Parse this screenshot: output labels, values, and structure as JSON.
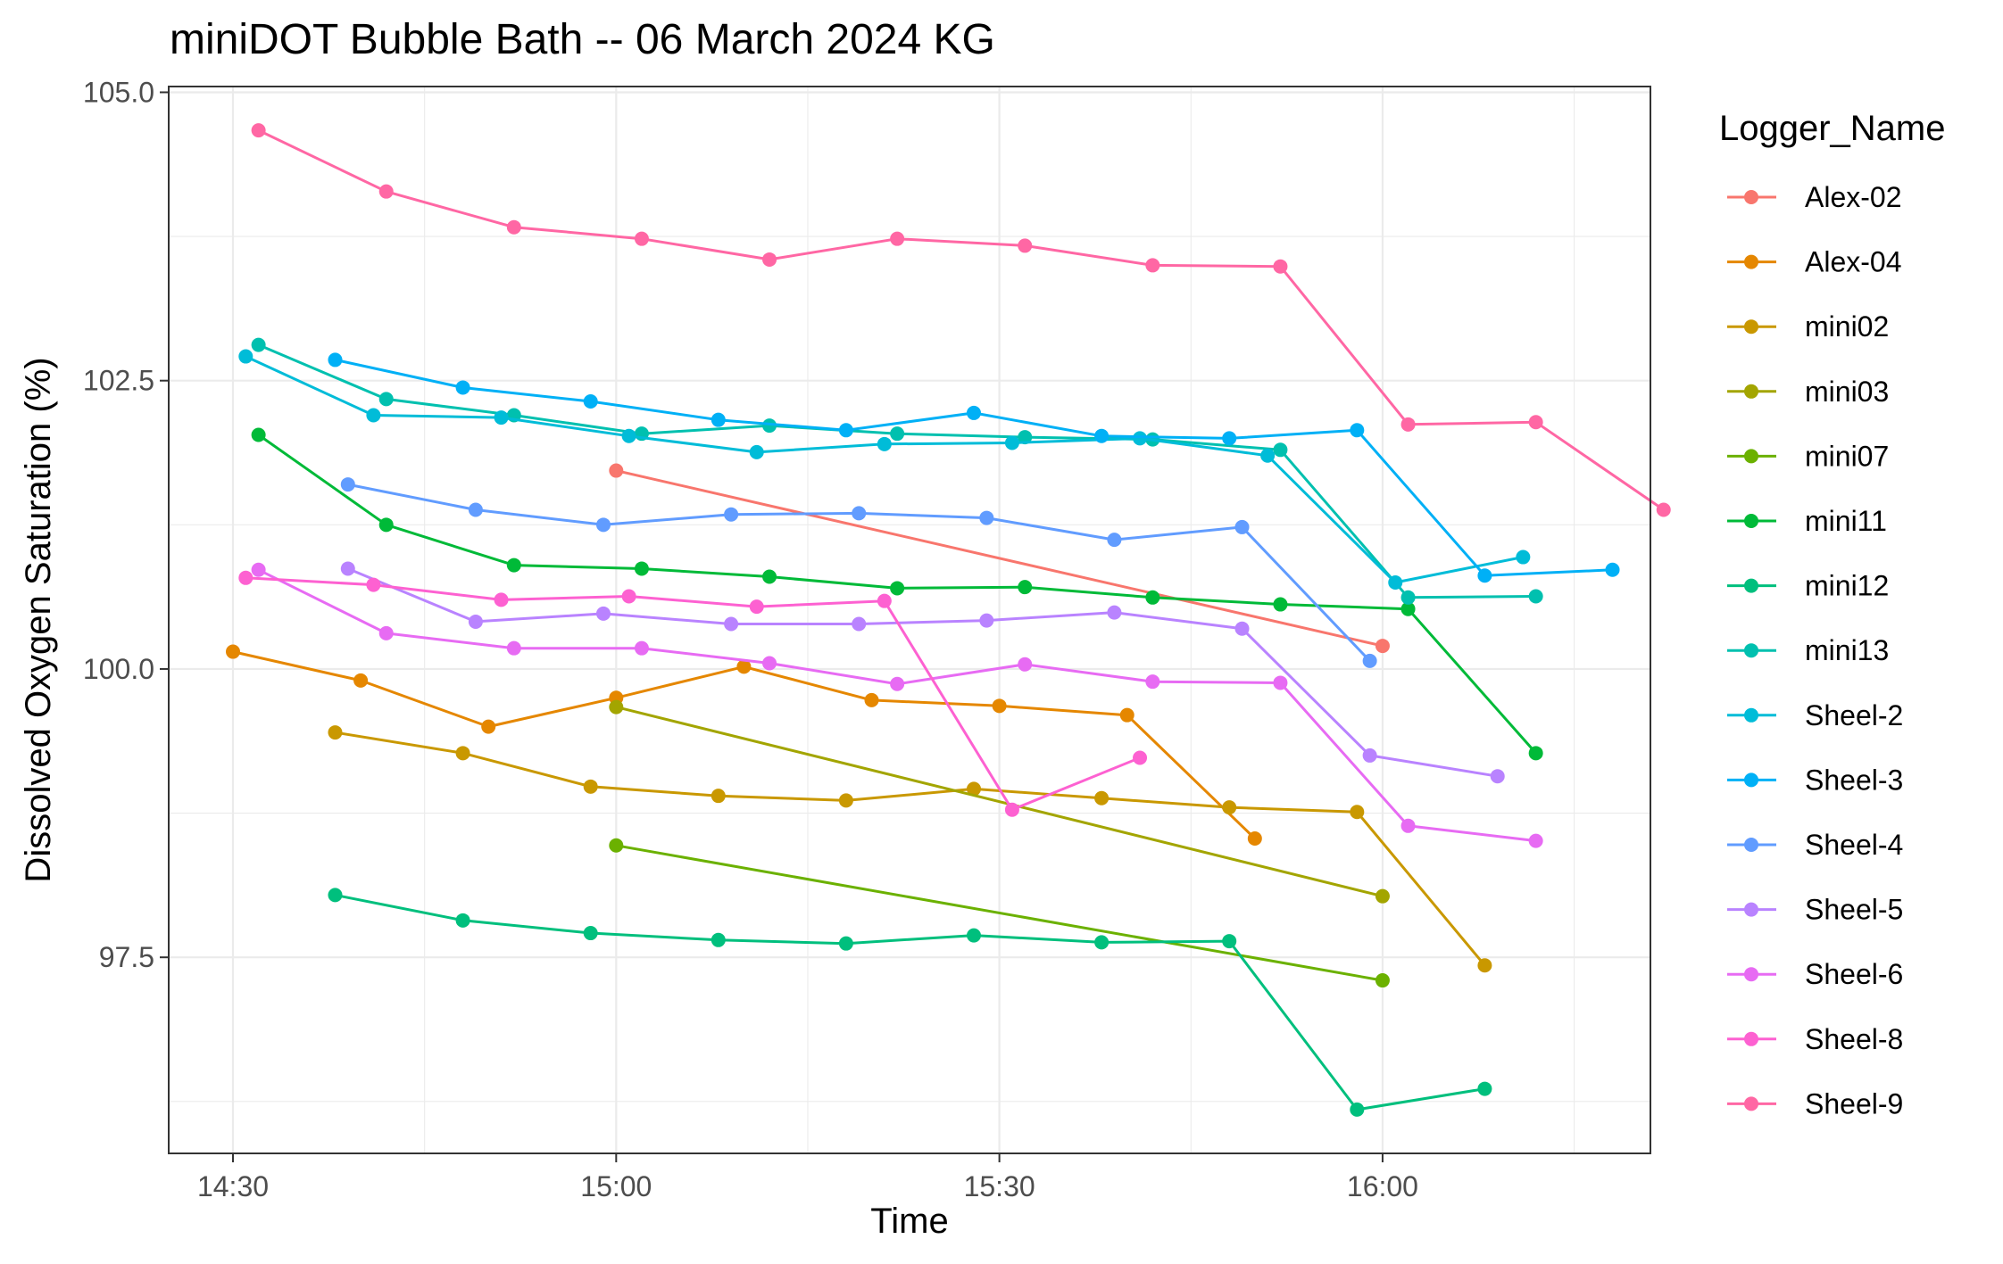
{
  "chart_data": {
    "type": "line",
    "title": "miniDOT Bubble Bath -- 06 March 2024 KG",
    "xlabel": "Time",
    "ylabel": "Dissolved Oxygen Saturation (%)",
    "x_ticks": [
      "14:30",
      "15:00",
      "15:30",
      "16:00"
    ],
    "y_ticks": [
      "97.5",
      "100.0",
      "102.5",
      "105.0"
    ],
    "xlim": [
      "14:30",
      "16:26"
    ],
    "ylim": [
      95.8,
      105.05
    ],
    "grid": true,
    "legend": {
      "title": "Logger_Name",
      "position": "right"
    },
    "series": [
      {
        "name": "Alex-02",
        "color": "#F8766D",
        "points": [
          [
            "15:00",
            101.72
          ],
          [
            "16:00",
            100.2
          ]
        ]
      },
      {
        "name": "Alex-04",
        "color": "#E58700",
        "points": [
          [
            "14:30",
            100.15
          ],
          [
            "14:40",
            99.9
          ],
          [
            "14:50",
            99.5
          ],
          [
            "15:00",
            99.75
          ],
          [
            "15:10",
            100.02
          ],
          [
            "15:20",
            99.73
          ],
          [
            "15:30",
            99.68
          ],
          [
            "15:40",
            99.6
          ],
          [
            "15:50",
            98.53
          ]
        ]
      },
      {
        "name": "mini02",
        "color": "#C99800",
        "points": [
          [
            "14:38",
            99.45
          ],
          [
            "14:48",
            99.27
          ],
          [
            "14:58",
            98.98
          ],
          [
            "15:08",
            98.9
          ],
          [
            "15:18",
            98.86
          ],
          [
            "15:28",
            98.96
          ],
          [
            "15:38",
            98.88
          ],
          [
            "15:48",
            98.8
          ],
          [
            "15:58",
            98.76
          ],
          [
            "16:08",
            97.43
          ]
        ]
      },
      {
        "name": "mini03",
        "color": "#A3A500",
        "points": [
          [
            "15:00",
            99.67
          ],
          [
            "16:00",
            98.03
          ]
        ]
      },
      {
        "name": "mini07",
        "color": "#6BB100",
        "points": [
          [
            "15:00",
            98.47
          ],
          [
            "16:00",
            97.3
          ]
        ]
      },
      {
        "name": "mini11",
        "color": "#00BA38",
        "points": [
          [
            "14:32",
            102.03
          ],
          [
            "14:42",
            101.25
          ],
          [
            "14:52",
            100.9
          ],
          [
            "15:02",
            100.87
          ],
          [
            "15:12",
            100.8
          ],
          [
            "15:22",
            100.7
          ],
          [
            "15:32",
            100.71
          ],
          [
            "15:42",
            100.62
          ],
          [
            "15:52",
            100.56
          ],
          [
            "16:02",
            100.52
          ],
          [
            "16:12",
            99.27
          ]
        ]
      },
      {
        "name": "mini12",
        "color": "#00BF7D",
        "points": [
          [
            "14:38",
            98.04
          ],
          [
            "14:48",
            97.82
          ],
          [
            "14:58",
            97.71
          ],
          [
            "15:08",
            97.65
          ],
          [
            "15:18",
            97.62
          ],
          [
            "15:28",
            97.69
          ],
          [
            "15:38",
            97.63
          ],
          [
            "15:48",
            97.64
          ],
          [
            "15:58",
            96.18
          ],
          [
            "16:08",
            96.36
          ]
        ]
      },
      {
        "name": "mini13",
        "color": "#00C0AF",
        "points": [
          [
            "14:32",
            102.81
          ],
          [
            "14:42",
            102.34
          ],
          [
            "14:52",
            102.2
          ],
          [
            "15:02",
            102.04
          ],
          [
            "15:12",
            102.11
          ],
          [
            "15:22",
            102.04
          ],
          [
            "15:32",
            102.01
          ],
          [
            "15:42",
            101.99
          ],
          [
            "15:52",
            101.9
          ],
          [
            "16:02",
            100.62
          ],
          [
            "16:12",
            100.63
          ]
        ]
      },
      {
        "name": "Sheel-2",
        "color": "#00BCD8",
        "points": [
          [
            "14:31",
            102.71
          ],
          [
            "14:41",
            102.2
          ],
          [
            "14:51",
            102.18
          ],
          [
            "15:01",
            102.02
          ],
          [
            "15:11",
            101.88
          ],
          [
            "15:21",
            101.95
          ],
          [
            "15:31",
            101.96
          ],
          [
            "15:41",
            102.0
          ],
          [
            "15:51",
            101.85
          ],
          [
            "16:01",
            100.75
          ],
          [
            "16:11",
            100.97
          ]
        ]
      },
      {
        "name": "Sheel-3",
        "color": "#00B0F6",
        "points": [
          [
            "14:38",
            102.68
          ],
          [
            "14:48",
            102.44
          ],
          [
            "14:58",
            102.32
          ],
          [
            "15:08",
            102.16
          ],
          [
            "15:18",
            102.07
          ],
          [
            "15:28",
            102.22
          ],
          [
            "15:38",
            102.02
          ],
          [
            "15:48",
            102.0
          ],
          [
            "15:58",
            102.07
          ],
          [
            "16:08",
            100.81
          ],
          [
            "16:18",
            100.86
          ]
        ]
      },
      {
        "name": "Sheel-4",
        "color": "#619CFF",
        "points": [
          [
            "14:39",
            101.6
          ],
          [
            "14:49",
            101.38
          ],
          [
            "14:59",
            101.25
          ],
          [
            "15:09",
            101.34
          ],
          [
            "15:19",
            101.35
          ],
          [
            "15:29",
            101.31
          ],
          [
            "15:39",
            101.12
          ],
          [
            "15:49",
            101.23
          ],
          [
            "15:59",
            100.07
          ]
        ]
      },
      {
        "name": "Sheel-5",
        "color": "#B983FF",
        "points": [
          [
            "14:39",
            100.87
          ],
          [
            "14:49",
            100.41
          ],
          [
            "14:59",
            100.48
          ],
          [
            "15:09",
            100.39
          ],
          [
            "15:19",
            100.39
          ],
          [
            "15:29",
            100.42
          ],
          [
            "15:39",
            100.49
          ],
          [
            "15:49",
            100.35
          ],
          [
            "15:59",
            99.25
          ],
          [
            "16:09",
            99.07
          ]
        ]
      },
      {
        "name": "Sheel-6",
        "color": "#E76BF3",
        "points": [
          [
            "14:32",
            100.86
          ],
          [
            "14:42",
            100.31
          ],
          [
            "14:52",
            100.18
          ],
          [
            "15:02",
            100.18
          ],
          [
            "15:12",
            100.05
          ],
          [
            "15:22",
            99.87
          ],
          [
            "15:32",
            100.04
          ],
          [
            "15:42",
            99.89
          ],
          [
            "15:52",
            99.88
          ],
          [
            "16:02",
            98.64
          ],
          [
            "16:12",
            98.51
          ]
        ]
      },
      {
        "name": "Sheel-8",
        "color": "#FD61D1",
        "points": [
          [
            "14:31",
            100.79
          ],
          [
            "14:41",
            100.73
          ],
          [
            "14:51",
            100.6
          ],
          [
            "15:01",
            100.63
          ],
          [
            "15:11",
            100.54
          ],
          [
            "15:21",
            100.59
          ],
          [
            "15:31",
            98.78
          ],
          [
            "15:41",
            99.23
          ]
        ]
      },
      {
        "name": "Sheel-9",
        "color": "#FF67A4",
        "points": [
          [
            "14:32",
            104.67
          ],
          [
            "14:42",
            104.14
          ],
          [
            "14:52",
            103.83
          ],
          [
            "15:02",
            103.73
          ],
          [
            "15:12",
            103.55
          ],
          [
            "15:22",
            103.73
          ],
          [
            "15:32",
            103.67
          ],
          [
            "15:42",
            103.5
          ],
          [
            "15:52",
            103.49
          ],
          [
            "16:02",
            102.12
          ],
          [
            "16:12",
            102.14
          ],
          [
            "16:22",
            101.38
          ]
        ]
      }
    ]
  }
}
